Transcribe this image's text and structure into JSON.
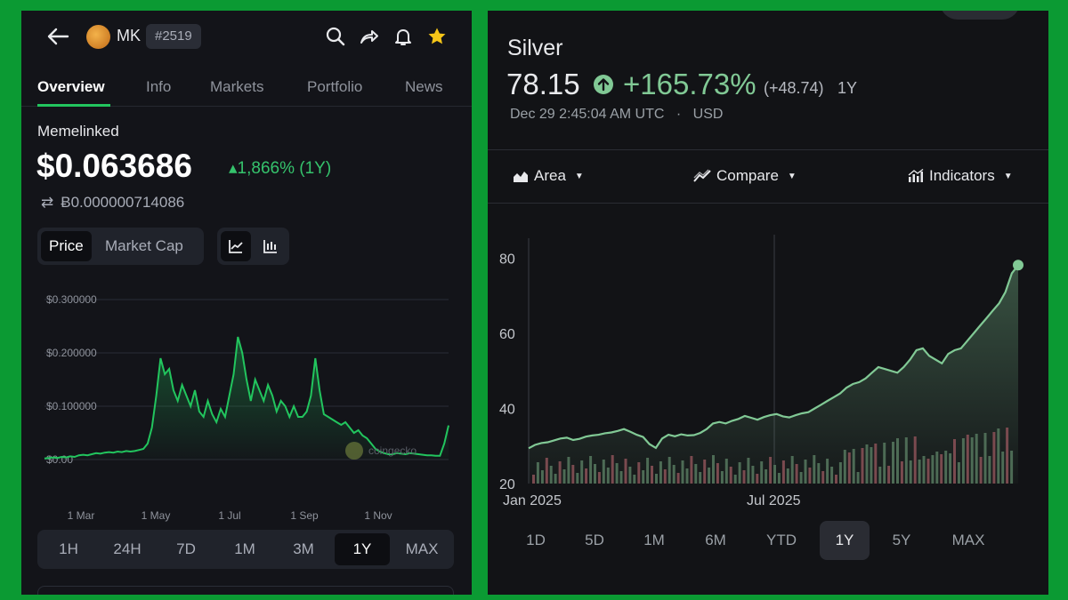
{
  "left": {
    "coin_symbol": "MK",
    "rank": "#2519",
    "tabs": [
      "Overview",
      "Info",
      "Markets",
      "Portfolio",
      "News"
    ],
    "active_tab": "Overview",
    "coin_name": "Memelinked",
    "price": "$0.063686",
    "change": "▴1,866% (1Y)",
    "btc_price": "Ƀ0.000000714086",
    "toggle": [
      "Price",
      "Market Cap"
    ],
    "icons": [
      "back-arrow-icon",
      "search-icon",
      "share-icon",
      "bell-icon",
      "star-icon",
      "swap-icon",
      "line-chart-icon",
      "candlestick-icon"
    ],
    "colors": {
      "accent": "#22c55e",
      "star": "#f5c518",
      "bg": "#131419"
    },
    "chart_data": {
      "type": "area",
      "title": "",
      "y_ticks": [
        "$0.300000",
        "$0.200000",
        "$0.100000",
        "$0.00"
      ],
      "x_ticks": [
        "1 Mar",
        "1 May",
        "1 Jul",
        "1 Sep",
        "1 Nov"
      ],
      "ylim": [
        0,
        0.3
      ],
      "watermark": "coingecko",
      "series": [
        {
          "values": [
            0.002,
            0.003,
            0.004,
            0.003,
            0.005,
            0.004,
            0.006,
            0.005,
            0.008,
            0.009,
            0.008,
            0.01,
            0.012,
            0.011,
            0.013,
            0.014,
            0.013,
            0.015,
            0.014,
            0.016,
            0.015,
            0.016,
            0.018,
            0.02,
            0.03,
            0.06,
            0.12,
            0.19,
            0.16,
            0.17,
            0.13,
            0.11,
            0.14,
            0.12,
            0.1,
            0.13,
            0.09,
            0.08,
            0.11,
            0.085,
            0.07,
            0.095,
            0.08,
            0.12,
            0.16,
            0.23,
            0.2,
            0.15,
            0.11,
            0.15,
            0.13,
            0.11,
            0.14,
            0.12,
            0.09,
            0.11,
            0.1,
            0.08,
            0.1,
            0.08,
            0.08,
            0.09,
            0.12,
            0.19,
            0.13,
            0.085,
            0.08,
            0.075,
            0.07,
            0.065,
            0.07,
            0.06,
            0.05,
            0.055,
            0.045,
            0.04,
            0.03,
            0.02,
            0.015,
            0.012,
            0.01,
            0.01,
            0.012,
            0.011,
            0.01,
            0.012,
            0.011,
            0.01,
            0.009,
            0.008,
            0.008,
            0.007,
            0.007,
            0.03,
            0.064
          ]
        }
      ]
    },
    "ranges": [
      "1H",
      "24H",
      "7D",
      "1M",
      "3M",
      "1Y",
      "MAX"
    ],
    "active_range": "1Y"
  },
  "right": {
    "asset": "Silver",
    "price": "78.15",
    "change_pct": "+165.73%",
    "change_abs": "(+48.74)",
    "period": "1Y",
    "timestamp": "Dec 29 2:45:04 AM UTC",
    "separator": "·",
    "currency": "USD",
    "toolbar": [
      "Area",
      "Compare",
      "Indicators"
    ],
    "icons": [
      "up-arrow-circle-icon",
      "area-chart-icon",
      "compare-icon",
      "indicators-icon"
    ],
    "colors": {
      "line": "#81c995",
      "volume_up": "#4d6b55",
      "volume_down": "#7a4a4f"
    },
    "chart_data": {
      "type": "area",
      "title": "",
      "y_ticks": [
        "80",
        "60",
        "40",
        "20"
      ],
      "x_ticks": [
        "Jan 2025",
        "Jul 2025"
      ],
      "ylim": [
        20,
        82
      ],
      "series": [
        {
          "values": [
            29.4,
            30.3,
            30.8,
            31.0,
            31.5,
            32.0,
            32.2,
            31.6,
            31.9,
            32.5,
            32.8,
            33.0,
            33.4,
            33.6,
            34.0,
            34.5,
            33.8,
            33.0,
            32.4,
            30.5,
            29.5,
            32.0,
            33.0,
            32.6,
            33.1,
            32.8,
            32.9,
            33.5,
            34.5,
            36.0,
            36.4,
            36.0,
            36.7,
            37.2,
            38.0,
            37.5,
            37.0,
            37.7,
            38.2,
            38.5,
            37.9,
            37.6,
            38.2,
            38.7,
            39.0,
            40.0,
            41.0,
            42.0,
            43.0,
            44.0,
            45.5,
            46.5,
            47.0,
            48.0,
            49.5,
            51.0,
            50.5,
            50.0,
            49.5,
            51.0,
            53.0,
            55.5,
            56.0,
            54.0,
            53.0,
            52.0,
            54.5,
            55.5,
            56.0,
            58.0,
            60.0,
            62.0,
            64.0,
            66.0,
            68.0,
            71.0,
            76.0,
            78.15
          ]
        }
      ]
    },
    "ranges": [
      "1D",
      "5D",
      "1M",
      "6M",
      "YTD",
      "1Y",
      "5Y",
      "MAX"
    ],
    "active_range": "1Y"
  }
}
